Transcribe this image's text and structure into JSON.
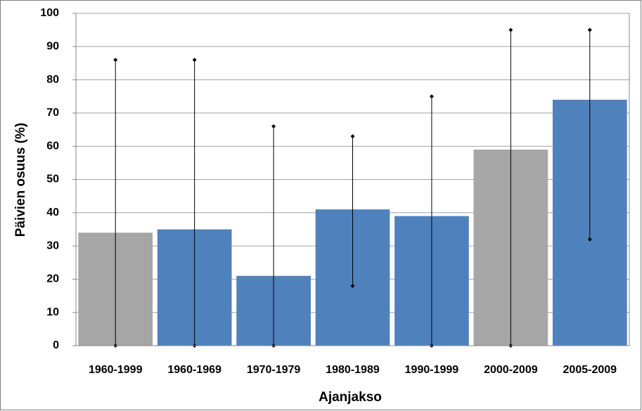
{
  "chart_data": {
    "type": "bar",
    "y_label": "Päivien osuus (%)",
    "x_label": "Ajanjakso",
    "categories": [
      "1960-1999",
      "1960-1969",
      "1970-1979",
      "1980-1989",
      "1990-1999",
      "2000-2009",
      "2005-2009"
    ],
    "values": [
      34,
      35,
      21,
      41,
      39,
      59,
      74
    ],
    "low": [
      0,
      0,
      0,
      18,
      0,
      0,
      32
    ],
    "high": [
      86,
      86,
      66,
      63,
      75,
      95,
      95
    ],
    "colors": [
      "#a6a6a6",
      "#4f81bd",
      "#4f81bd",
      "#4f81bd",
      "#4f81bd",
      "#a6a6a6",
      "#4f81bd"
    ],
    "ylim": [
      0,
      100
    ],
    "yticks": [
      0,
      10,
      20,
      30,
      40,
      50,
      60,
      70,
      80,
      90,
      100
    ],
    "grid": true
  }
}
